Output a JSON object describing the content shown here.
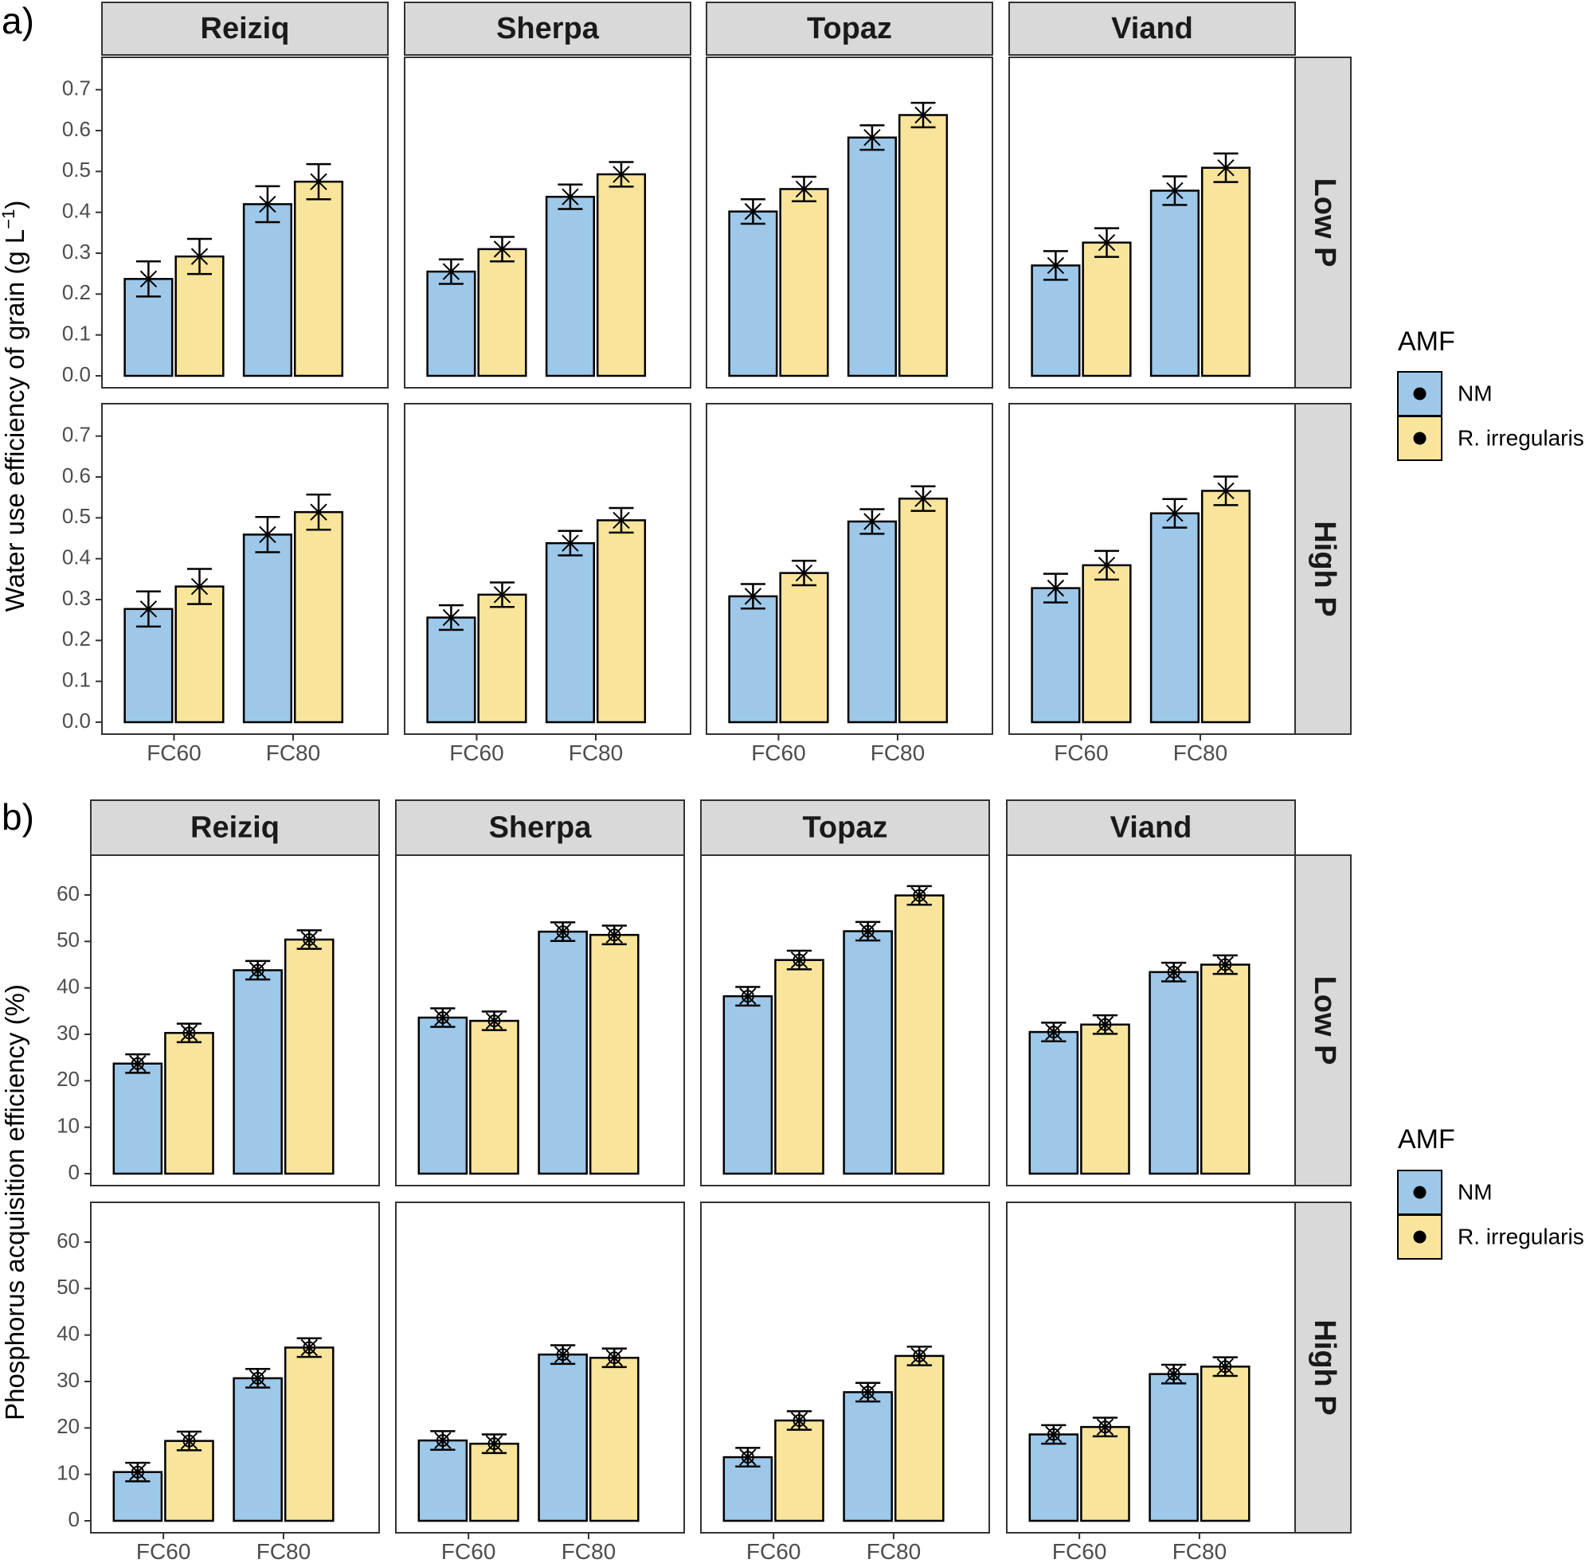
{
  "chart_data": [
    {
      "type": "bar",
      "panel_label": "a)",
      "ylabel": "Water use efficiency of grain (g L",
      "ylabel_unit_sup": "−1",
      "ylabel_close": ")",
      "yticks": [
        "0.0",
        "0.1",
        "0.2",
        "0.3",
        "0.4",
        "0.5",
        "0.6",
        "0.7"
      ],
      "ylim": [
        0,
        0.75
      ],
      "categories": [
        "FC60",
        "FC80"
      ],
      "columns": [
        "Reiziq",
        "Sherpa",
        "Topaz",
        "Viand"
      ],
      "rows": [
        "Low P",
        "High P"
      ],
      "marker": "x",
      "legend": {
        "title": "AMF",
        "entries": [
          "NM",
          "R. irregularis"
        ]
      },
      "series": [
        "NM",
        "R. irregularis"
      ],
      "panels": [
        {
          "column": "Reiziq",
          "row": "Low P",
          "values": [
            [
              0.237,
              0.043
            ],
            [
              0.292,
              0.043
            ],
            [
              0.42,
              0.044
            ],
            [
              0.475,
              0.043
            ]
          ]
        },
        {
          "column": "Sherpa",
          "row": "Low P",
          "values": [
            [
              0.255,
              0.03
            ],
            [
              0.31,
              0.03
            ],
            [
              0.438,
              0.03
            ],
            [
              0.493,
              0.03
            ]
          ]
        },
        {
          "column": "Topaz",
          "row": "Low P",
          "values": [
            [
              0.402,
              0.03
            ],
            [
              0.457,
              0.03
            ],
            [
              0.583,
              0.03
            ],
            [
              0.638,
              0.03
            ]
          ]
        },
        {
          "column": "Viand",
          "row": "Low P",
          "values": [
            [
              0.27,
              0.035
            ],
            [
              0.326,
              0.035
            ],
            [
              0.453,
              0.035
            ],
            [
              0.509,
              0.035
            ]
          ]
        },
        {
          "column": "Reiziq",
          "row": "High P",
          "values": [
            [
              0.277,
              0.043
            ],
            [
              0.332,
              0.043
            ],
            [
              0.459,
              0.043
            ],
            [
              0.514,
              0.043
            ]
          ]
        },
        {
          "column": "Sherpa",
          "row": "High P",
          "values": [
            [
              0.256,
              0.03
            ],
            [
              0.312,
              0.03
            ],
            [
              0.438,
              0.03
            ],
            [
              0.494,
              0.03
            ]
          ]
        },
        {
          "column": "Topaz",
          "row": "High P",
          "values": [
            [
              0.308,
              0.03
            ],
            [
              0.365,
              0.03
            ],
            [
              0.491,
              0.03
            ],
            [
              0.547,
              0.03
            ]
          ]
        },
        {
          "column": "Viand",
          "row": "High P",
          "values": [
            [
              0.328,
              0.035
            ],
            [
              0.384,
              0.035
            ],
            [
              0.511,
              0.035
            ],
            [
              0.566,
              0.035
            ]
          ]
        }
      ]
    },
    {
      "type": "bar",
      "panel_label": "b)",
      "ylabel": "Phosphorus acquisition efficiency (%)",
      "ylabel_unit_sup": "",
      "ylabel_close": "",
      "yticks": [
        "0",
        "10",
        "20",
        "30",
        "40",
        "50",
        "60"
      ],
      "ylim": [
        0,
        66
      ],
      "categories": [
        "FC60",
        "FC80"
      ],
      "columns": [
        "Reiziq",
        "Sherpa",
        "Topaz",
        "Viand"
      ],
      "rows": [
        "Low P",
        "High P"
      ],
      "marker": "xo",
      "legend": {
        "title": "AMF",
        "entries": [
          "NM",
          "R. irregularis"
        ]
      },
      "series": [
        "NM",
        "R. irregularis"
      ],
      "panels": [
        {
          "column": "Reiziq",
          "row": "Low P",
          "values": [
            [
              23.7,
              2.0
            ],
            [
              30.3,
              2.0
            ],
            [
              43.8,
              2.0
            ],
            [
              50.4,
              2.0
            ]
          ]
        },
        {
          "column": "Sherpa",
          "row": "Low P",
          "values": [
            [
              33.6,
              2.0
            ],
            [
              32.9,
              2.0
            ],
            [
              52.1,
              2.0
            ],
            [
              51.4,
              2.0
            ]
          ]
        },
        {
          "column": "Topaz",
          "row": "Low P",
          "values": [
            [
              38.2,
              2.0
            ],
            [
              46.0,
              2.0
            ],
            [
              52.2,
              2.0
            ],
            [
              59.9,
              2.0
            ]
          ]
        },
        {
          "column": "Viand",
          "row": "Low P",
          "values": [
            [
              30.5,
              2.0
            ],
            [
              32.1,
              2.0
            ],
            [
              43.4,
              2.0
            ],
            [
              45.0,
              2.0
            ]
          ]
        },
        {
          "column": "Reiziq",
          "row": "High P",
          "values": [
            [
              10.5,
              2.0
            ],
            [
              17.2,
              2.0
            ],
            [
              30.7,
              2.0
            ],
            [
              37.3,
              2.0
            ]
          ]
        },
        {
          "column": "Sherpa",
          "row": "High P",
          "values": [
            [
              17.3,
              2.0
            ],
            [
              16.6,
              2.0
            ],
            [
              35.8,
              2.0
            ],
            [
              35.1,
              2.0
            ]
          ]
        },
        {
          "column": "Topaz",
          "row": "High P",
          "values": [
            [
              13.7,
              2.0
            ],
            [
              21.6,
              2.0
            ],
            [
              27.7,
              2.0
            ],
            [
              35.5,
              2.0
            ]
          ]
        },
        {
          "column": "Viand",
          "row": "High P",
          "values": [
            [
              18.6,
              2.0
            ],
            [
              20.2,
              2.0
            ],
            [
              31.6,
              2.0
            ],
            [
              33.2,
              2.0
            ]
          ]
        }
      ]
    }
  ],
  "colors": {
    "NM": "#9dc8e9",
    "R. irregularis": "#f8e59b",
    "strip": "#d9d9d9",
    "frame": "#333333",
    "axis_text": "#4d4d4d"
  }
}
